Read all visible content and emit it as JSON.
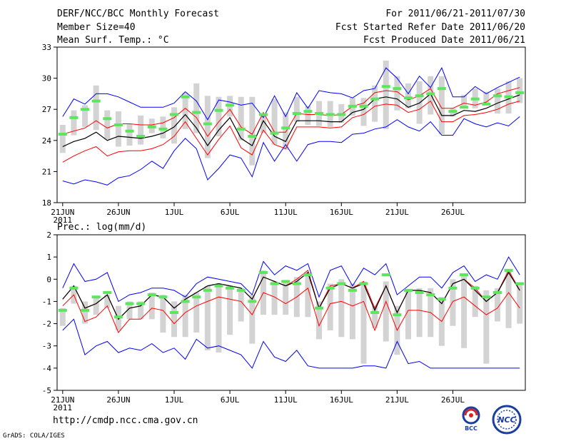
{
  "header": {
    "title": "DERF/NCC/BCC Monthly Forecast",
    "member_size": "Member Size=40",
    "variable": "Mean Surf. Temp.: °C",
    "period": "For 2011/06/21-2011/07/30",
    "start_date": "Fcst Started Refer Date 2011/06/20",
    "produced_date": "Fcst Produced Date 2011/06/21"
  },
  "footer": {
    "url": "http://cmdp.ncc.cma.gov.cn",
    "grads": "GrADS: COLA/IGES",
    "logo_bcc": "BCC",
    "logo_ncc": "NCC"
  },
  "chart_data": [
    {
      "type": "line",
      "title": "Mean Surf. Temp.: °C",
      "x_tick_labels": [
        "21JUN",
        "26JUN",
        "1JUL",
        "6JUL",
        "11JUL",
        "16JUL",
        "21JUL",
        "26JUL"
      ],
      "x_tick_days": [
        1,
        6,
        11,
        16,
        21,
        26,
        31,
        36
      ],
      "x_year_label": "2011",
      "ylim": [
        18,
        33
      ],
      "y_ticks": [
        18,
        21,
        24,
        27,
        30,
        33
      ],
      "colors": {
        "max_min": "#0000ff",
        "spread": "#ff0000",
        "mean": "#000000",
        "box": "#d3d3d3",
        "ensemble_marker": "#5ce65c"
      },
      "series": [
        {
          "name": "max",
          "values": [
            26.3,
            28.0,
            27.5,
            28.5,
            28.5,
            28.2,
            27.7,
            27.2,
            27.2,
            27.2,
            27.6,
            28.7,
            27.8,
            26.0,
            27.9,
            27.7,
            27.4,
            27.6,
            26.2,
            28.3,
            26.3,
            28.6,
            27.1,
            28.8,
            28.6,
            28.5,
            28.1,
            28.8,
            29.0,
            31.0,
            30.0,
            28.5,
            30.2,
            29.1,
            31.0,
            28.2,
            28.2,
            29.2,
            28.5,
            29.1,
            29.6,
            30.1
          ]
        },
        {
          "name": "upper",
          "values": [
            24.6,
            24.9,
            25.2,
            25.9,
            25.2,
            25.6,
            25.6,
            25.5,
            25.5,
            25.7,
            26.2,
            27.1,
            26.2,
            24.4,
            25.8,
            27.0,
            25.3,
            24.6,
            26.7,
            24.8,
            24.8,
            26.6,
            26.5,
            26.5,
            26.4,
            26.5,
            27.3,
            27.6,
            28.6,
            28.8,
            28.7,
            27.9,
            28.3,
            29.0,
            27.1,
            27.1,
            27.6,
            27.4,
            27.7,
            28.5,
            28.8,
            29.1
          ]
        },
        {
          "name": "mean",
          "values": [
            23.4,
            23.9,
            24.2,
            24.8,
            24.0,
            24.4,
            24.3,
            24.2,
            24.4,
            24.7,
            25.3,
            26.5,
            25.2,
            23.5,
            25.0,
            26.2,
            24.2,
            23.5,
            25.9,
            24.4,
            23.9,
            25.9,
            25.9,
            25.9,
            25.8,
            25.8,
            26.7,
            27.0,
            28.0,
            28.2,
            28.0,
            27.2,
            27.6,
            28.5,
            26.4,
            26.4,
            26.9,
            26.8,
            27.1,
            27.6,
            28.0,
            28.4
          ]
        },
        {
          "name": "lower",
          "values": [
            21.9,
            22.5,
            23.0,
            23.4,
            22.5,
            22.9,
            23.0,
            23.0,
            23.2,
            23.6,
            24.4,
            25.8,
            24.2,
            22.6,
            24.1,
            25.4,
            23.3,
            22.6,
            25.0,
            23.6,
            23.2,
            25.3,
            25.3,
            25.3,
            25.2,
            25.3,
            26.2,
            26.5,
            27.3,
            27.5,
            27.4,
            26.7,
            27.0,
            27.8,
            25.8,
            25.8,
            26.4,
            26.5,
            26.7,
            27.0,
            27.5,
            27.8
          ]
        },
        {
          "name": "min",
          "values": [
            20.1,
            19.8,
            20.2,
            20.0,
            19.7,
            20.4,
            20.6,
            21.2,
            22.0,
            21.3,
            23.0,
            24.2,
            23.2,
            20.2,
            21.3,
            22.6,
            22.3,
            20.5,
            23.8,
            22.0,
            23.6,
            22.0,
            23.6,
            23.9,
            23.9,
            23.8,
            24.6,
            24.7,
            25.1,
            25.3,
            26.0,
            25.3,
            24.9,
            25.8,
            24.5,
            24.5,
            26.1,
            25.6,
            25.3,
            25.7,
            25.4,
            26.3
          ]
        },
        {
          "name": "box_top",
          "values": [
            25.5,
            26.9,
            27.4,
            29.3,
            26.9,
            26.8,
            25.6,
            26.4,
            26.1,
            26.3,
            27.2,
            28.6,
            29.5,
            28.3,
            28.2,
            28.3,
            28.2,
            28.2,
            26.4,
            28.0,
            26.7,
            28.2,
            27.3,
            27.8,
            27.8,
            27.5,
            28.1,
            28.1,
            29.3,
            31.7,
            30.2,
            29.5,
            29.7,
            30.2,
            30.2,
            27.1,
            28.4,
            29.0,
            28.7,
            29.0,
            29.7,
            30.0
          ]
        },
        {
          "name": "box_bottom",
          "values": [
            22.8,
            24.5,
            25.3,
            25.0,
            24.1,
            23.4,
            23.5,
            23.6,
            24.7,
            24.2,
            23.7,
            25.1,
            24.7,
            22.3,
            24.4,
            26.3,
            24.0,
            21.6,
            24.7,
            23.6,
            23.1,
            25.8,
            25.5,
            25.4,
            25.3,
            25.7,
            26.4,
            25.4,
            25.8,
            25.1,
            26.9,
            27.1,
            25.6,
            26.5,
            24.6,
            26.3,
            27.1,
            27.1,
            27.4,
            26.6,
            26.6,
            27.6
          ]
        },
        {
          "name": "ensemble_marker",
          "values": [
            24.6,
            26.2,
            27.0,
            27.8,
            26.1,
            25.5,
            24.9,
            24.4,
            25.3,
            25.1,
            26.5,
            28.2,
            26.7,
            25.6,
            26.9,
            27.4,
            25.1,
            24.4,
            26.5,
            24.7,
            25.2,
            26.6,
            26.8,
            26.6,
            26.5,
            26.5,
            27.3,
            27.3,
            28.0,
            29.2,
            29.0,
            28.1,
            28.3,
            28.5,
            29.0,
            26.8,
            27.2,
            28.0,
            27.5,
            28.3,
            28.2,
            28.6
          ]
        }
      ]
    },
    {
      "type": "line",
      "title": "Prec.: log(mm/d)",
      "x_tick_labels": [
        "21JUN",
        "26JUN",
        "1JUL",
        "6JUL",
        "11JUL",
        "16JUL",
        "21JUL",
        "26JUL"
      ],
      "x_tick_days": [
        1,
        6,
        11,
        16,
        21,
        26,
        31,
        36
      ],
      "x_year_label": "2011",
      "ylim": [
        -5,
        2
      ],
      "y_ticks": [
        -5,
        -4,
        -3,
        -2,
        -1,
        0,
        1,
        2
      ],
      "colors": {
        "max_min": "#0000ff",
        "spread": "#ff0000",
        "mean": "#000000",
        "box": "#d3d3d3",
        "ensemble_marker": "#5ce65c"
      },
      "series": [
        {
          "name": "max",
          "values": [
            -0.4,
            0.7,
            -0.1,
            0.0,
            0.3,
            -1.0,
            -0.7,
            -0.6,
            -0.4,
            -0.4,
            -0.5,
            -0.8,
            -0.2,
            0.1,
            0.0,
            -0.1,
            -0.2,
            -0.7,
            0.8,
            0.2,
            0.6,
            0.4,
            0.7,
            -0.8,
            0.4,
            0.6,
            -0.3,
            0.5,
            0.2,
            0.7,
            -0.7,
            -0.3,
            0.1,
            0.1,
            -0.4,
            0.3,
            0.6,
            -0.1,
            0.2,
            0.0,
            1.0,
            0.2
          ]
        },
        {
          "name": "upper",
          "values": [
            -0.9,
            -0.3,
            -1.3,
            -1.1,
            -0.7,
            -1.8,
            -1.3,
            -1.2,
            -0.7,
            -0.8,
            -1.3,
            -0.9,
            -0.6,
            -0.3,
            -0.2,
            -0.3,
            -0.4,
            -0.9,
            0.1,
            -0.1,
            -0.3,
            0.0,
            0.4,
            -1.3,
            -0.3,
            -0.2,
            -0.4,
            -0.1,
            -1.3,
            -0.3,
            -1.5,
            -0.5,
            -0.5,
            -0.6,
            -1.1,
            -0.2,
            0.0,
            -0.4,
            -1.0,
            -0.6,
            0.4,
            -0.5
          ]
        },
        {
          "name": "mean",
          "values": [
            -0.9,
            -0.3,
            -1.3,
            -1.1,
            -0.7,
            -1.8,
            -1.3,
            -1.2,
            -0.7,
            -0.8,
            -1.3,
            -0.9,
            -0.6,
            -0.3,
            -0.2,
            -0.3,
            -0.4,
            -0.9,
            0.1,
            -0.1,
            -0.3,
            -0.1,
            0.3,
            -1.3,
            -0.4,
            -0.2,
            -0.4,
            -0.2,
            -1.4,
            -0.3,
            -1.5,
            -0.5,
            -0.5,
            -0.6,
            -1.1,
            -0.2,
            0.0,
            -0.5,
            -1.0,
            -0.6,
            0.3,
            -0.5
          ]
        },
        {
          "name": "lower",
          "values": [
            -1.2,
            -0.7,
            -1.9,
            -1.7,
            -1.2,
            -2.4,
            -1.8,
            -1.8,
            -1.3,
            -1.4,
            -2.0,
            -1.5,
            -1.2,
            -1.0,
            -0.8,
            -0.9,
            -1.0,
            -1.6,
            -0.6,
            -0.8,
            -1.1,
            -0.8,
            -0.4,
            -2.1,
            -1.1,
            -1.0,
            -1.2,
            -1.0,
            -2.3,
            -1.0,
            -2.3,
            -1.4,
            -1.4,
            -1.5,
            -1.9,
            -1.0,
            -0.8,
            -1.2,
            -1.6,
            -1.3,
            -0.6,
            -1.3
          ]
        },
        {
          "name": "min",
          "values": [
            -2.3,
            -1.8,
            -3.4,
            -3.0,
            -2.8,
            -3.3,
            -3.1,
            -3.2,
            -2.9,
            -3.3,
            -3.1,
            -3.6,
            -2.7,
            -3.1,
            -3.0,
            -3.2,
            -3.4,
            -4.0,
            -2.8,
            -3.5,
            -3.7,
            -3.2,
            -3.9,
            -4.0,
            -4.0,
            -4.0,
            -4.0,
            -3.9,
            -3.9,
            -4.0,
            -2.8,
            -3.8,
            -3.7,
            -4.0,
            -4.0,
            -4.0,
            -4.0,
            -4.0,
            -4.0,
            -4.0,
            -4.0,
            -4.0
          ]
        },
        {
          "name": "box_top",
          "values": [
            -1.3,
            -0.3,
            -1.0,
            -0.8,
            -0.7,
            -1.2,
            -1.0,
            -1.0,
            -0.6,
            -0.7,
            -1.0,
            -0.7,
            -0.6,
            -0.3,
            -0.2,
            -0.3,
            -0.4,
            -0.7,
            0.4,
            -0.1,
            -0.1,
            0.1,
            0.3,
            -1.0,
            -0.2,
            0.0,
            -0.2,
            -0.1,
            -1.2,
            -0.1,
            -1.2,
            -0.5,
            -0.4,
            -0.4,
            -0.8,
            0.0,
            0.2,
            -0.3,
            -0.5,
            -0.4,
            0.4,
            -0.2
          ]
        },
        {
          "name": "box_bottom",
          "values": [
            -2.1,
            -1.1,
            -2.0,
            -1.6,
            -1.3,
            -2.3,
            -1.8,
            -1.8,
            -1.8,
            -2.4,
            -2.6,
            -2.6,
            -2.4,
            -3.2,
            -3.3,
            -2.5,
            -1.9,
            -2.9,
            -1.6,
            -1.6,
            -1.6,
            -1.7,
            -1.7,
            -2.7,
            -2.3,
            -2.6,
            -2.7,
            -3.8,
            -2.2,
            -2.8,
            -3.4,
            -2.7,
            -2.6,
            -2.6,
            -3.0,
            -2.1,
            -3.1,
            -1.7,
            -3.8,
            -1.9,
            -2.2,
            -2.0
          ]
        },
        {
          "name": "ensemble_marker",
          "values": [
            -1.4,
            -0.4,
            -1.4,
            -0.8,
            -0.6,
            -1.7,
            -1.1,
            -1.1,
            -0.7,
            -0.8,
            -1.5,
            -1.0,
            -0.8,
            -0.5,
            -0.3,
            -0.4,
            -0.5,
            -1.0,
            0.3,
            -0.2,
            -0.1,
            -0.2,
            0.2,
            -1.3,
            -0.4,
            -0.2,
            -0.5,
            -0.2,
            -1.5,
            0.2,
            -1.6,
            -0.5,
            -0.6,
            -0.7,
            -0.9,
            -0.4,
            0.2,
            -0.4,
            -0.8,
            -0.6,
            0.4,
            -0.2
          ]
        }
      ]
    }
  ]
}
